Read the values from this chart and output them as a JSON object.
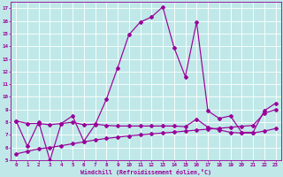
{
  "xlabel": "Windchill (Refroidissement éolien,°C)",
  "bg_color": "#c0e8e8",
  "grid_color": "#b0d8d8",
  "line_color": "#990099",
  "xlim": [
    -0.5,
    23.5
  ],
  "ylim": [
    5,
    17.5
  ],
  "xticks": [
    0,
    1,
    2,
    3,
    4,
    5,
    6,
    7,
    8,
    9,
    10,
    11,
    12,
    13,
    14,
    15,
    16,
    17,
    18,
    19,
    20,
    21,
    22,
    23
  ],
  "yticks": [
    5,
    6,
    7,
    8,
    9,
    10,
    11,
    12,
    13,
    14,
    15,
    16,
    17
  ],
  "line1_x": [
    0,
    1,
    2,
    3,
    4,
    5,
    6,
    7,
    8,
    9,
    10,
    11,
    12,
    13,
    14,
    15,
    16,
    17,
    18,
    19,
    20,
    21,
    22,
    23
  ],
  "line1_y": [
    8.1,
    6.1,
    8.0,
    5.0,
    7.9,
    8.5,
    6.5,
    7.8,
    9.8,
    12.3,
    14.9,
    15.9,
    16.3,
    17.1,
    13.9,
    11.6,
    15.9,
    8.9,
    8.3,
    8.5,
    7.2,
    7.2,
    8.9,
    9.5
  ],
  "line2_x": [
    0,
    1,
    2,
    3,
    4,
    5,
    6,
    7,
    8,
    9,
    10,
    11,
    12,
    13,
    14,
    15,
    16,
    17,
    18,
    19,
    20,
    21,
    22,
    23
  ],
  "line2_y": [
    8.1,
    7.9,
    7.9,
    7.8,
    7.9,
    8.0,
    7.8,
    7.85,
    7.75,
    7.7,
    7.7,
    7.7,
    7.7,
    7.7,
    7.7,
    7.65,
    8.25,
    7.6,
    7.4,
    7.2,
    7.15,
    7.15,
    7.3,
    7.5
  ],
  "line3_x": [
    0,
    1,
    2,
    3,
    4,
    5,
    6,
    7,
    8,
    9,
    10,
    11,
    12,
    13,
    14,
    15,
    16,
    17,
    18,
    19,
    20,
    21,
    22,
    23
  ],
  "line3_y": [
    5.5,
    5.7,
    5.9,
    6.0,
    6.15,
    6.3,
    6.45,
    6.6,
    6.72,
    6.82,
    6.92,
    7.0,
    7.08,
    7.15,
    7.22,
    7.3,
    7.38,
    7.45,
    7.52,
    7.6,
    7.68,
    7.75,
    8.7,
    9.0
  ]
}
